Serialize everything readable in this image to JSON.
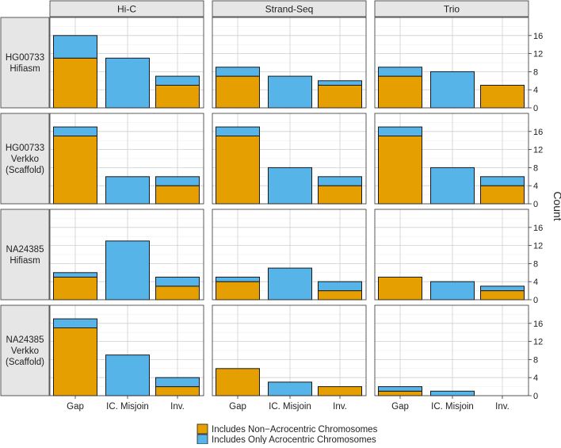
{
  "chart_data": {
    "type": "bar",
    "stacked": true,
    "facet_columns": [
      "Hi-C",
      "Strand-Seq",
      "Trio"
    ],
    "facet_rows": [
      {
        "label_lines": [
          "HG00733",
          "Hifiasm"
        ]
      },
      {
        "label_lines": [
          "HG00733",
          "Verkko",
          "(Scaffold)"
        ]
      },
      {
        "label_lines": [
          "NA24385",
          "Hifiasm"
        ]
      },
      {
        "label_lines": [
          "NA24385",
          "Verkko",
          "(Scaffold)"
        ]
      }
    ],
    "categories": [
      "Gap",
      "IC. Misjoin",
      "Inv."
    ],
    "ylabel": "Count",
    "ylim": [
      0,
      20
    ],
    "yticks": [
      "0",
      "4",
      "8",
      "12",
      "16"
    ],
    "series": [
      {
        "name": "Includes Non−Acrocentric Chromosomes",
        "color": "#E69F00"
      },
      {
        "name": "Includes Only Acrocentric Chromosomes",
        "color": "#56B4E9"
      }
    ],
    "values": [
      [
        [
          [
            11,
            5
          ],
          [
            0,
            11
          ],
          [
            5,
            2
          ]
        ],
        [
          [
            7,
            2
          ],
          [
            0,
            7
          ],
          [
            5,
            1
          ]
        ],
        [
          [
            7,
            2
          ],
          [
            0,
            8
          ],
          [
            5,
            0
          ]
        ]
      ],
      [
        [
          [
            15,
            2
          ],
          [
            0,
            6
          ],
          [
            4,
            2
          ]
        ],
        [
          [
            15,
            2
          ],
          [
            0,
            8
          ],
          [
            4,
            2
          ]
        ],
        [
          [
            15,
            2
          ],
          [
            0,
            8
          ],
          [
            4,
            2
          ]
        ]
      ],
      [
        [
          [
            5,
            1
          ],
          [
            0,
            13
          ],
          [
            3,
            2
          ]
        ],
        [
          [
            4,
            1
          ],
          [
            0,
            7
          ],
          [
            2,
            2
          ]
        ],
        [
          [
            5,
            0
          ],
          [
            0,
            4
          ],
          [
            2,
            1
          ]
        ]
      ],
      [
        [
          [
            15,
            2
          ],
          [
            0,
            9
          ],
          [
            2,
            2
          ]
        ],
        [
          [
            6,
            0
          ],
          [
            0,
            3
          ],
          [
            2,
            0
          ]
        ],
        [
          [
            1,
            1
          ],
          [
            0,
            1
          ],
          [
            0,
            0
          ]
        ]
      ]
    ]
  }
}
